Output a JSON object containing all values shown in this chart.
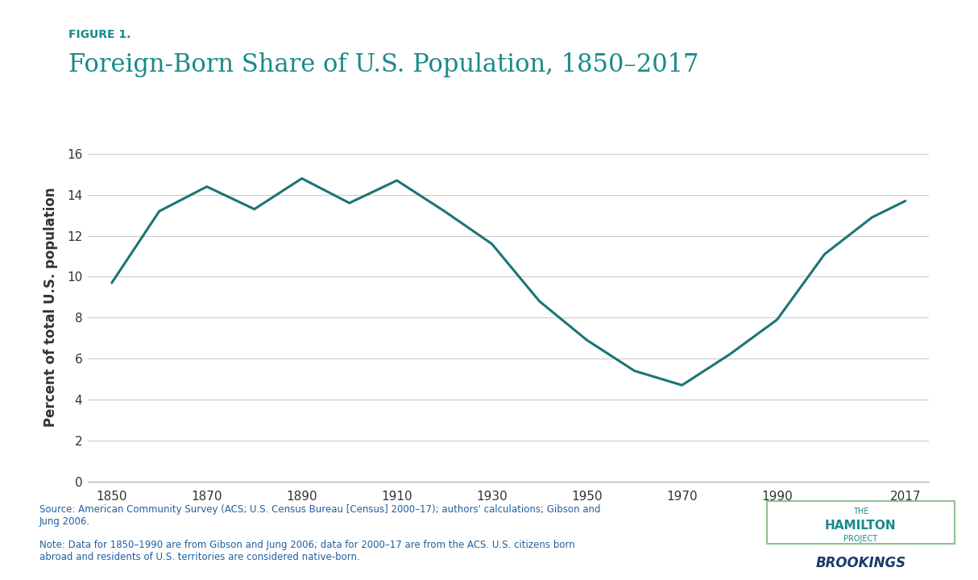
{
  "title_label": "FIGURE 1.",
  "title": "Foreign-Born Share of U.S. Population, 1850–2017",
  "ylabel": "Percent of total U.S. population",
  "title_color": "#1a8a8a",
  "label_color": "#1a8a8a",
  "line_color": "#1a7575",
  "background_color": "#ffffff",
  "years": [
    1850,
    1860,
    1870,
    1880,
    1890,
    1900,
    1910,
    1920,
    1930,
    1940,
    1950,
    1960,
    1970,
    1980,
    1990,
    2000,
    2010,
    2017
  ],
  "values": [
    9.7,
    13.2,
    14.4,
    13.3,
    14.8,
    13.6,
    14.7,
    13.2,
    11.6,
    8.8,
    6.9,
    5.4,
    4.7,
    6.2,
    7.9,
    11.1,
    12.9,
    13.7
  ],
  "xlim": [
    1845,
    2022
  ],
  "ylim": [
    0,
    17
  ],
  "yticks": [
    0,
    2,
    4,
    6,
    8,
    10,
    12,
    14,
    16
  ],
  "xticks": [
    1850,
    1870,
    1890,
    1910,
    1930,
    1950,
    1970,
    1990,
    2017
  ],
  "source_text": "Source: American Community Survey (ACS; U.S. Census Bureau [Census] 2000–17); authors' calculations; Gibson and\nJung 2006.",
  "note_text": "Note: Data for 1850–1990 are from Gibson and Jung 2006; data for 2000–17 are from the ACS. U.S. citizens born\nabroad and residents of U.S. territories are considered native-born.",
  "hamilton_text": "THE\nHAMILTON\nPROJECT",
  "brookings_text": "BROOKINGS",
  "grid_color": "#cccccc",
  "tick_label_color": "#333333",
  "figure_label_color": "#1a8a8a",
  "source_color": "#2060a0",
  "note_color": "#2060a0"
}
